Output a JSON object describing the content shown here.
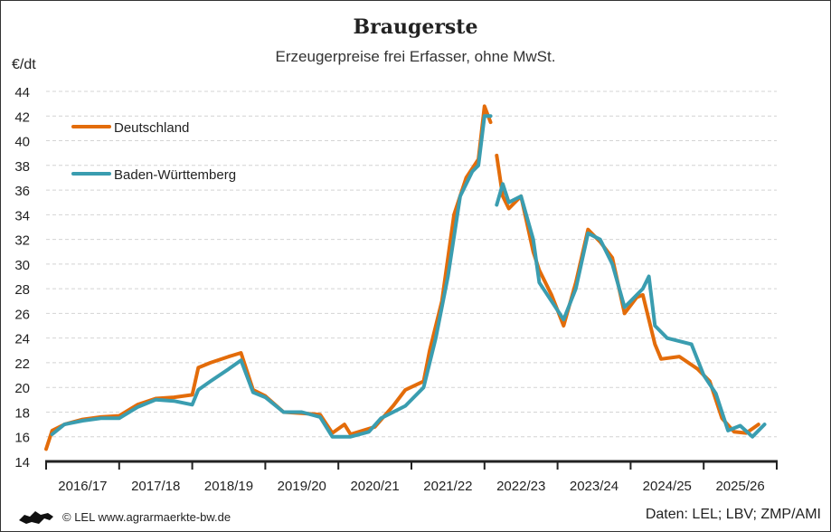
{
  "title": "Braugerste",
  "subtitle": "Erzeugerpreise frei Erfasser, ohne MwSt.",
  "footer": {
    "copyright": "© LEL www.agrarmaerkte-bw.de",
    "source": "Daten: LEL; LBV; ZMP/AMI",
    "logo": "Baden-Württemberg lion logo"
  },
  "chart_data": {
    "type": "line",
    "title": "Braugerste",
    "ylabel": "€/dt",
    "ylim": [
      14,
      44
    ],
    "yticks": [
      14,
      16,
      18,
      20,
      22,
      24,
      26,
      28,
      30,
      32,
      34,
      36,
      38,
      40,
      42,
      44
    ],
    "xlim": [
      "2016-07",
      "2026-07"
    ],
    "xtick_labels": [
      "2016/17",
      "2017/18",
      "2018/19",
      "2019/20",
      "2020/21",
      "2021/22",
      "2022/23",
      "2023/24",
      "2024/25",
      "2025/26"
    ],
    "grid": "horizontal dashed",
    "legend": "top-left",
    "series": [
      {
        "name": "Deutschland",
        "color": "#e36c0a",
        "points": [
          [
            "2016-07",
            15.0
          ],
          [
            "2016-08",
            16.5
          ],
          [
            "2016-10",
            17.0
          ],
          [
            "2017-01",
            17.4
          ],
          [
            "2017-04",
            17.6
          ],
          [
            "2017-07",
            17.7
          ],
          [
            "2017-10",
            18.6
          ],
          [
            "2018-01",
            19.1
          ],
          [
            "2018-04",
            19.2
          ],
          [
            "2018-07",
            19.4
          ],
          [
            "2018-08",
            21.6
          ],
          [
            "2018-10",
            22.0
          ],
          [
            "2019-01",
            22.5
          ],
          [
            "2019-03",
            22.8
          ],
          [
            "2019-05",
            19.8
          ],
          [
            "2019-07",
            19.3
          ],
          [
            "2019-10",
            18.0
          ],
          [
            "2020-01",
            17.9
          ],
          [
            "2020-04",
            17.8
          ],
          [
            "2020-06",
            16.3
          ],
          [
            "2020-08",
            17.0
          ],
          [
            "2020-09",
            16.2
          ],
          [
            "2021-01",
            16.8
          ],
          [
            "2021-04",
            18.5
          ],
          [
            "2021-06",
            19.8
          ],
          [
            "2021-09",
            20.5
          ],
          [
            "2021-10",
            23.0
          ],
          [
            "2021-12",
            27.0
          ],
          [
            "2022-02",
            34.0
          ],
          [
            "2022-04",
            37.0
          ],
          [
            "2022-06",
            38.5
          ],
          [
            "2022-07",
            42.8
          ],
          [
            "2022-08",
            41.5
          ],
          [
            "2022-08",
            null
          ],
          [
            "2022-09",
            38.8
          ],
          [
            "2022-10",
            35.5
          ],
          [
            "2022-11",
            34.5
          ],
          [
            "2023-01",
            35.5
          ],
          [
            "2023-03",
            31.0
          ],
          [
            "2023-04",
            29.5
          ],
          [
            "2023-06",
            27.5
          ],
          [
            "2023-08",
            25.0
          ],
          [
            "2023-10",
            28.5
          ],
          [
            "2023-12",
            32.8
          ],
          [
            "2024-02",
            31.8
          ],
          [
            "2024-04",
            30.5
          ],
          [
            "2024-06",
            26.0
          ],
          [
            "2024-08",
            27.3
          ],
          [
            "2024-09",
            27.5
          ],
          [
            "2024-11",
            23.5
          ],
          [
            "2024-12",
            22.3
          ],
          [
            "2025-03",
            22.5
          ],
          [
            "2025-06",
            21.5
          ],
          [
            "2025-08",
            20.5
          ],
          [
            "2025-10",
            17.5
          ],
          [
            "2025-12",
            16.4
          ],
          [
            "2026-02",
            16.3
          ],
          [
            "2026-04",
            17.0
          ]
        ]
      },
      {
        "name": "Baden-Württemberg",
        "color": "#3a9db0",
        "points": [
          [
            "2016-08",
            16.2
          ],
          [
            "2016-10",
            17.0
          ],
          [
            "2017-01",
            17.3
          ],
          [
            "2017-04",
            17.5
          ],
          [
            "2017-07",
            17.5
          ],
          [
            "2017-10",
            18.4
          ],
          [
            "2018-01",
            19.0
          ],
          [
            "2018-04",
            18.9
          ],
          [
            "2018-07",
            18.6
          ],
          [
            "2018-08",
            19.8
          ],
          [
            "2018-10",
            20.5
          ],
          [
            "2019-01",
            21.5
          ],
          [
            "2019-03",
            22.2
          ],
          [
            "2019-05",
            19.6
          ],
          [
            "2019-07",
            19.2
          ],
          [
            "2019-10",
            18.0
          ],
          [
            "2020-01",
            18.0
          ],
          [
            "2020-04",
            17.6
          ],
          [
            "2020-06",
            16.0
          ],
          [
            "2020-09",
            16.0
          ],
          [
            "2020-12",
            16.4
          ],
          [
            "2021-02",
            17.5
          ],
          [
            "2021-06",
            18.5
          ],
          [
            "2021-09",
            20.0
          ],
          [
            "2021-11",
            24.0
          ],
          [
            "2022-01",
            29.0
          ],
          [
            "2022-03",
            35.5
          ],
          [
            "2022-05",
            37.5
          ],
          [
            "2022-06",
            38.0
          ],
          [
            "2022-07",
            42.0
          ],
          [
            "2022-08",
            42.0
          ],
          [
            "2022-08",
            null
          ],
          [
            "2022-09",
            34.8
          ],
          [
            "2022-10",
            36.5
          ],
          [
            "2022-11",
            35.0
          ],
          [
            "2023-01",
            35.5
          ],
          [
            "2023-03",
            32.0
          ],
          [
            "2023-04",
            28.5
          ],
          [
            "2023-06",
            27.0
          ],
          [
            "2023-08",
            25.5
          ],
          [
            "2023-10",
            28.0
          ],
          [
            "2023-12",
            32.5
          ],
          [
            "2024-02",
            32.0
          ],
          [
            "2024-04",
            30.0
          ],
          [
            "2024-06",
            26.5
          ],
          [
            "2024-09",
            28.0
          ],
          [
            "2024-10",
            29.0
          ],
          [
            "2024-11",
            25.0
          ],
          [
            "2025-01",
            24.0
          ],
          [
            "2025-05",
            23.5
          ],
          [
            "2025-07",
            21.0
          ],
          [
            "2025-09",
            19.5
          ],
          [
            "2025-11",
            16.5
          ],
          [
            "2026-01",
            16.9
          ],
          [
            "2026-03",
            16.0
          ],
          [
            "2026-05",
            17.0
          ]
        ]
      }
    ]
  }
}
